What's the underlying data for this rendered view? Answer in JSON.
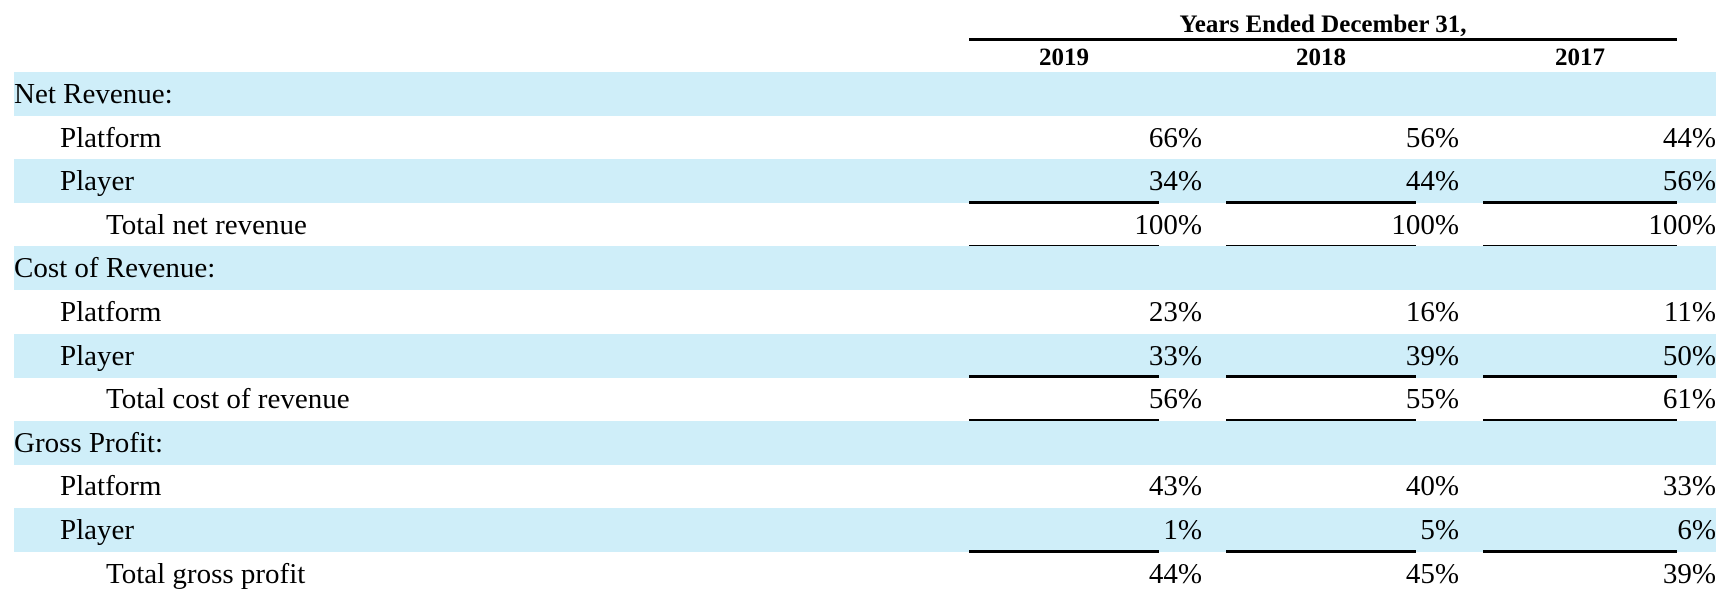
{
  "header": {
    "group_label": "Years Ended December 31,",
    "years": [
      "2019",
      "2018",
      "2017"
    ]
  },
  "rows": [
    {
      "label": "Net Revenue:",
      "level": 0,
      "shaded": true,
      "values": [
        "",
        "",
        ""
      ]
    },
    {
      "label": "Platform",
      "level": 1,
      "shaded": false,
      "values": [
        "66%",
        "56%",
        "44%"
      ]
    },
    {
      "label": "Player",
      "level": 1,
      "shaded": true,
      "values": [
        "34%",
        "44%",
        "56%"
      ]
    },
    {
      "label": "Total net revenue",
      "level": 2,
      "shaded": false,
      "values": [
        "100%",
        "100%",
        "100%"
      ]
    },
    {
      "label": "Cost of Revenue:",
      "level": 0,
      "shaded": true,
      "values": [
        "",
        "",
        ""
      ]
    },
    {
      "label": "Platform",
      "level": 1,
      "shaded": false,
      "values": [
        "23%",
        "16%",
        "11%"
      ]
    },
    {
      "label": "Player",
      "level": 1,
      "shaded": true,
      "values": [
        "33%",
        "39%",
        "50%"
      ]
    },
    {
      "label": "Total cost of revenue",
      "level": 2,
      "shaded": false,
      "values": [
        "56%",
        "55%",
        "61%"
      ]
    },
    {
      "label": "Gross Profit:",
      "level": 0,
      "shaded": true,
      "values": [
        "",
        "",
        ""
      ]
    },
    {
      "label": "Platform",
      "level": 1,
      "shaded": false,
      "values": [
        "43%",
        "40%",
        "33%"
      ]
    },
    {
      "label": "Player",
      "level": 1,
      "shaded": true,
      "values": [
        "1%",
        "5%",
        "6%"
      ]
    },
    {
      "label": "Total gross profit",
      "level": 2,
      "shaded": false,
      "values": [
        "44%",
        "45%",
        "39%"
      ]
    }
  ],
  "colors": {
    "row_shade": "#cfeef9",
    "rule": "#000000"
  }
}
